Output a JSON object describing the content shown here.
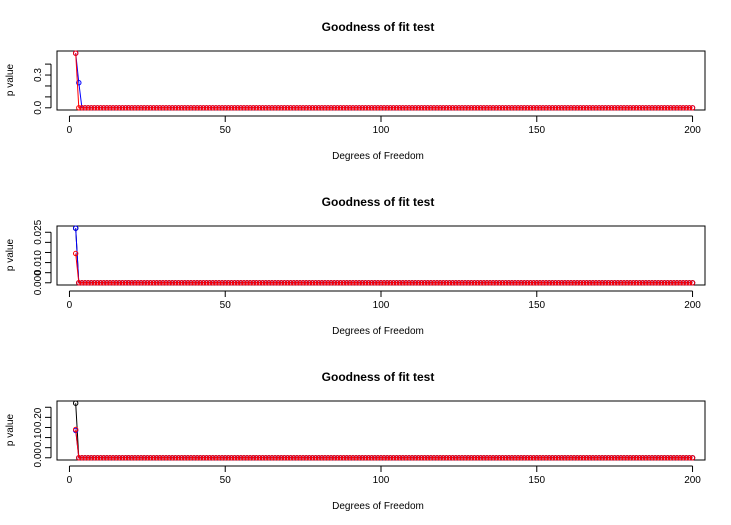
{
  "chart_data": [
    {
      "type": "scatter",
      "title": "Goodness of fit test",
      "xlabel": "Degrees of Freedom",
      "ylabel": "p value",
      "xlim": [
        -4,
        204
      ],
      "ylim": [
        -0.02,
        0.52
      ],
      "x_ticks": [
        0,
        50,
        100,
        150,
        200
      ],
      "y_ticks": [
        0.0,
        0.1,
        0.2,
        0.3,
        0.4
      ],
      "y_tick_labels": [
        "0.0",
        "",
        "",
        "0.3",
        ""
      ],
      "x_range": [
        2,
        200
      ],
      "series": [
        {
          "color": "#0000ff",
          "head": [
            0.5,
            0.23
          ],
          "tail": 0.0
        },
        {
          "color": "#ff0000",
          "head": [
            0.5,
            0.0
          ],
          "tail": 0.0
        }
      ],
      "grid": false
    },
    {
      "type": "scatter",
      "title": "Goodness of fit test",
      "xlabel": "Degrees of Freedom",
      "ylabel": "p value",
      "xlim": [
        -4,
        204
      ],
      "ylim": [
        -0.0011,
        0.0281
      ],
      "x_ticks": [
        0,
        50,
        100,
        150,
        200
      ],
      "y_ticks": [
        0.0,
        0.005,
        0.01,
        0.015,
        0.02,
        0.025
      ],
      "y_tick_labels": [
        "0.000",
        "",
        "0.010",
        "",
        "",
        "0.025"
      ],
      "x_range": [
        2,
        200
      ],
      "series": [
        {
          "color": "#000000",
          "head": [
            0.027,
            0.0
          ],
          "tail": 0.0
        },
        {
          "color": "#0000ff",
          "head": [
            0.027,
            0.0
          ],
          "tail": 0.0
        },
        {
          "color": "#ff0000",
          "head": [
            0.0145,
            0.0
          ],
          "tail": 0.0
        }
      ],
      "grid": false
    },
    {
      "type": "scatter",
      "title": "Goodness of fit test",
      "xlabel": "Degrees of Freedom",
      "ylabel": "p value",
      "xlim": [
        -4,
        204
      ],
      "ylim": [
        -0.011,
        0.281
      ],
      "x_ticks": [
        0,
        50,
        100,
        150,
        200
      ],
      "y_ticks": [
        0.0,
        0.05,
        0.1,
        0.15,
        0.2,
        0.25
      ],
      "y_tick_labels": [
        "0.00",
        "",
        "0.10",
        "",
        "0.20",
        ""
      ],
      "x_range": [
        2,
        200
      ],
      "series": [
        {
          "color": "#000000",
          "head": [
            0.27,
            0.0
          ],
          "tail": 0.0
        },
        {
          "color": "#0000ff",
          "head": [
            0.135,
            0.0
          ],
          "tail": 0.0
        },
        {
          "color": "#ff0000",
          "head": [
            0.14,
            0.0
          ],
          "tail": 0.0
        }
      ],
      "grid": false
    }
  ]
}
